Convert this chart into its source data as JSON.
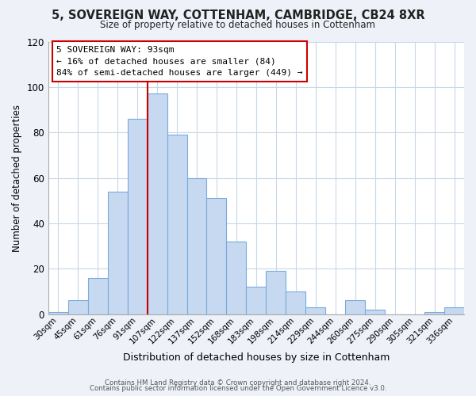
{
  "title1": "5, SOVEREIGN WAY, COTTENHAM, CAMBRIDGE, CB24 8XR",
  "title2": "Size of property relative to detached houses in Cottenham",
  "xlabel": "Distribution of detached houses by size in Cottenham",
  "ylabel": "Number of detached properties",
  "footer1": "Contains HM Land Registry data © Crown copyright and database right 2024.",
  "footer2": "Contains public sector information licensed under the Open Government Licence v3.0.",
  "bar_labels": [
    "30sqm",
    "45sqm",
    "61sqm",
    "76sqm",
    "91sqm",
    "107sqm",
    "122sqm",
    "137sqm",
    "152sqm",
    "168sqm",
    "183sqm",
    "198sqm",
    "214sqm",
    "229sqm",
    "244sqm",
    "260sqm",
    "275sqm",
    "290sqm",
    "305sqm",
    "321sqm",
    "336sqm"
  ],
  "bar_values": [
    1,
    6,
    16,
    54,
    86,
    97,
    79,
    60,
    51,
    32,
    12,
    19,
    10,
    3,
    0,
    6,
    2,
    0,
    0,
    1,
    3
  ],
  "bar_color": "#c6d9f0",
  "bar_edge_color": "#7aaadc",
  "vline_color": "#cc0000",
  "vline_x_idx": 4.5,
  "annotation_line0": "5 SOVEREIGN WAY: 93sqm",
  "annotation_line1": "← 16% of detached houses are smaller (84)",
  "annotation_line2": "84% of semi-detached houses are larger (449) →",
  "annotation_box_edge": "#cc0000",
  "ylim": [
    0,
    120
  ],
  "yticks": [
    0,
    20,
    40,
    60,
    80,
    100,
    120
  ],
  "background_color": "#eef2f8",
  "plot_bg_color": "#ffffff",
  "grid_color": "#c8d8e8"
}
